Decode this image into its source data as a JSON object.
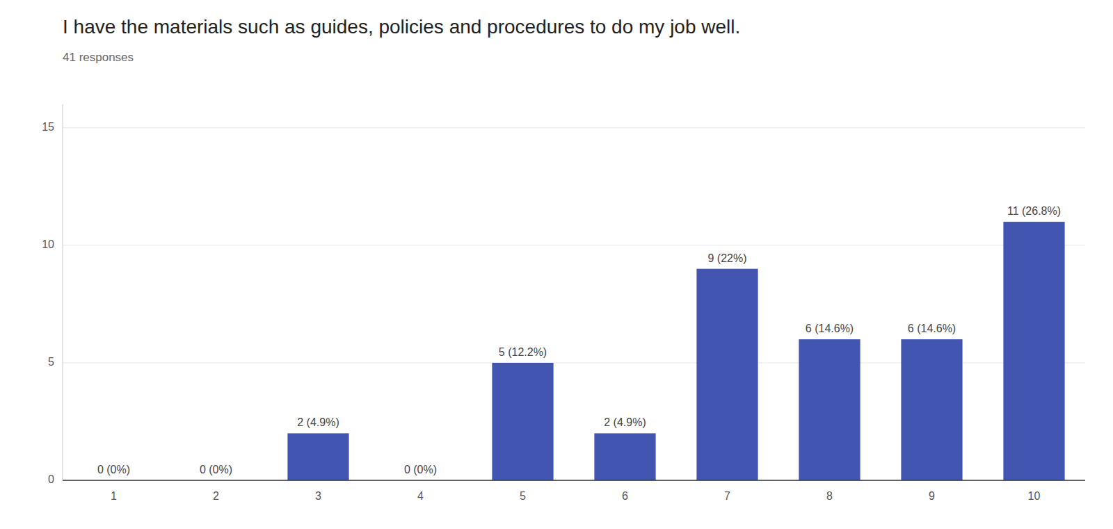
{
  "chart_data": {
    "type": "bar",
    "title": "I have the materials such as guides, policies and procedures to do my job well.",
    "subtitle": "41 responses",
    "categories": [
      1,
      2,
      3,
      4,
      5,
      6,
      7,
      8,
      9,
      10
    ],
    "values": [
      0,
      0,
      2,
      0,
      5,
      2,
      9,
      6,
      6,
      11
    ],
    "value_labels": [
      "0 (0%)",
      "0 (0%)",
      "2 (4.9%)",
      "0 (0%)",
      "5 (12.2%)",
      "2 (4.9%)",
      "9 (22%)",
      "6 (14.6%)",
      "6 (14.6%)",
      "11 (26.8%)"
    ],
    "data_labels": true,
    "color": "#4255b0",
    "ylim": [
      0,
      16
    ],
    "yticks": [
      0,
      5,
      10,
      15
    ],
    "grid": true
  }
}
